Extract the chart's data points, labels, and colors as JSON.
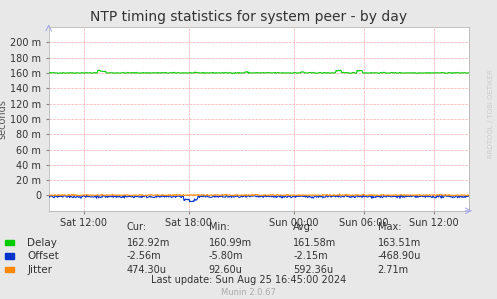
{
  "title": "NTP timing statistics for system peer - by day",
  "ylabel": "seconds",
  "background_color": "#e8e8e8",
  "plot_bg_color": "#ffffff",
  "grid_color": "#ffaaaa",
  "x_ticks_labels": [
    "Sat 12:00",
    "Sat 18:00",
    "Sun 00:00",
    "Sun 06:00",
    "Sun 12:00"
  ],
  "x_ticks_positions": [
    0.083,
    0.333,
    0.583,
    0.75,
    0.917
  ],
  "yticks": [
    0,
    20,
    40,
    60,
    80,
    100,
    120,
    140,
    160,
    180,
    200
  ],
  "ytick_labels": [
    "0",
    "20 m",
    "40 m",
    "60 m",
    "80 m",
    "100 m",
    "120 m",
    "140 m",
    "160 m",
    "180 m",
    "200 m"
  ],
  "delay_color": "#00cc00",
  "offset_color": "#0033cc",
  "jitter_color": "#ff8800",
  "legend_items": [
    "Delay",
    "Offset",
    "Jitter"
  ],
  "cur_label": "Cur:",
  "min_label": "Min:",
  "avg_label": "Avg:",
  "max_label": "Max:",
  "delay_cur": "162.92m",
  "delay_min": "160.99m",
  "delay_avg": "161.58m",
  "delay_max": "163.51m",
  "offset_cur": "-2.56m",
  "offset_min": "-5.80m",
  "offset_avg": "-2.15m",
  "offset_max": "-468.90u",
  "jitter_cur": "474.30u",
  "jitter_min": "92.60u",
  "jitter_avg": "592.36u",
  "jitter_max": "2.71m",
  "last_update": "Last update: Sun Aug 25 16:45:00 2024",
  "munin_version": "Munin 2.0.67",
  "rrdtool_label": "RRDTOOL / TOBI OETIKER",
  "title_fontsize": 10,
  "axis_fontsize": 7,
  "legend_fontsize": 7.5,
  "stats_fontsize": 7
}
